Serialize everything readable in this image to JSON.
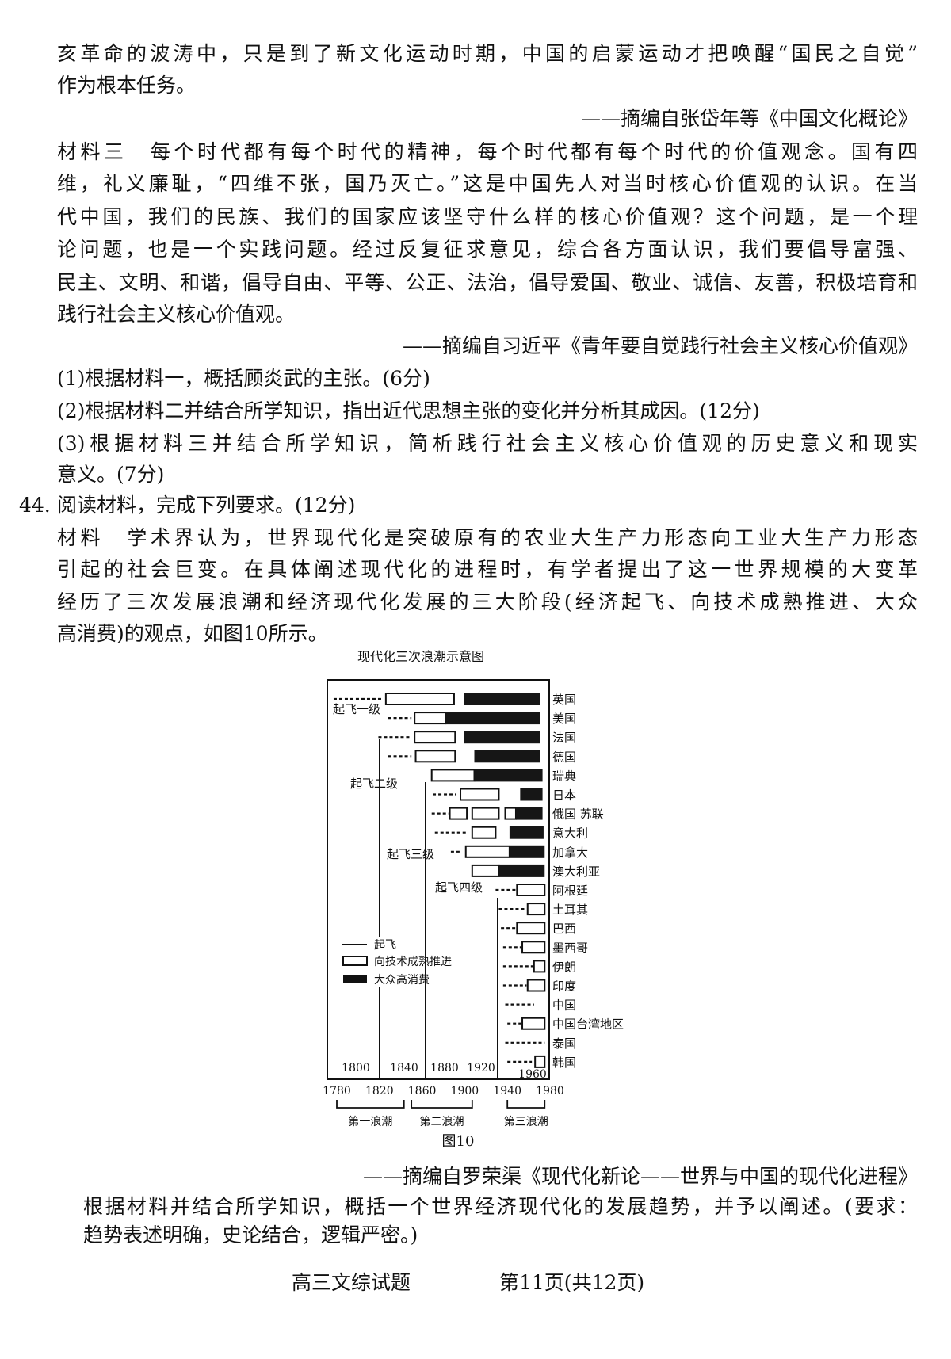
{
  "material2_tail": {
    "lines": [
      "亥革命的波涛中，只是到了新文化运动时期，中国的启蒙运动才把唤醒“国民之自觉”",
      "作为根本任务。"
    ],
    "source": "——摘编自张岱年等《中国文化概论》"
  },
  "material3": {
    "lines": [
      "材料三　每个时代都有每个时代的精神，每个时代都有每个时代的价值观念。国有四",
      "维，礼义廉耻，“四维不张，国乃灭亡。”这是中国先人对当时核心价值观的认识。在当",
      "代中国，我们的民族、我们的国家应该坚守什么样的核心价值观？这个问题，是一个理",
      "论问题，也是一个实践问题。经过反复征求意见，综合各方面认识，我们要倡导富强、",
      "民主、文明、和谐，倡导自由、平等、公正、法治，倡导爱国、敬业、诚信、友善，积极培育和",
      "践行社会主义核心价值观。"
    ],
    "source": "——摘编自习近平《青年要自觉践行社会主义核心价值观》"
  },
  "questions43": [
    "(1)根据材料一，概括顾炎武的主张。(6分)",
    "(2)根据材料二并结合所学知识，指出近代思想主张的变化并分析其成因。(12分)",
    "(3)根据材料三并结合所学知识，简析践行社会主义核心价值观的历史意义和现实",
    "意义。(7分)"
  ],
  "q44": {
    "number": "44.",
    "heading": "阅读材料，完成下列要求。(12分)",
    "material_lines": [
      "材料　学术界认为，世界现代化是突破原有的农业大生产力形态向工业大生产力形态",
      "引起的社会巨变。在具体阐述现代化的进程时，有学者提出了这一世界规模的大变革",
      "经历了三次发展浪潮和经济现代化发展的三大阶段(经济起飞、向技术成熟推进、大众",
      "高消费)的观点，如图10所示。"
    ],
    "figure_caption": "图10",
    "source": "——摘编自罗荣渠《现代化新论——世界与中国的现代化进程》",
    "task_lines": [
      "根据材料并结合所学知识，概括一个世界经济现代化的发展趋势，并予以阐述。(要求：",
      "趋势表述明确，史论结合，逻辑严密。)"
    ]
  },
  "chart_data": {
    "type": "timeline-bar",
    "title": "现代化三次浪潮示意图",
    "legend": {
      "takeoff": "起飞",
      "tech": "向技术成熟推进",
      "mass": "大众高消费"
    },
    "stage_labels": [
      "起飞一级",
      "起飞二级",
      "起飞三级",
      "起飞四级"
    ],
    "x_ticks": [
      "1780",
      "1820",
      "1860",
      "1900",
      "1940",
      "1980"
    ],
    "x_ticks_inner": [
      "1800",
      "1840",
      "1880",
      "1920",
      "1960"
    ],
    "xlim": [
      1771,
      1979
    ],
    "waves": [
      {
        "label": "第一浪潮",
        "range": [
          1780,
          1843
        ]
      },
      {
        "label": "第二浪潮",
        "range": [
          1850,
          1907
        ]
      },
      {
        "label": "第三浪潮",
        "range": [
          1940,
          1975
        ]
      }
    ],
    "rows": [
      {
        "name": "英国",
        "takeoff": [
          1777,
          1822
        ],
        "tech": [
          [
            1826,
            1890
          ]
        ],
        "mass": [
          1899,
          1971
        ]
      },
      {
        "name": "美国",
        "takeoff": [
          1828,
          1850
        ],
        "tech": [
          [
            1853,
            1882
          ]
        ],
        "mass": [
          1882,
          1971
        ]
      },
      {
        "name": "法国",
        "takeoff": [
          1819,
          1848
        ],
        "tech": [
          [
            1853,
            1891
          ]
        ],
        "mass": [
          1899,
          1971
        ]
      },
      {
        "name": "德国",
        "takeoff": [
          1828,
          1850
        ],
        "tech": [
          [
            1854,
            1891
          ]
        ],
        "mass": [
          1909,
          1971
        ]
      },
      {
        "name": "瑞典",
        "takeoff": null,
        "tech": [
          [
            1869,
            1909
          ]
        ],
        "mass": [
          1909,
          1973
        ]
      },
      {
        "name": "日本",
        "takeoff": [
          1870,
          1892
        ],
        "tech": [
          [
            1896,
            1932
          ]
        ],
        "mass": [
          1952,
          1973
        ]
      },
      {
        "name": "俄国 苏联",
        "takeoff": [
          1869,
          1885
        ],
        "tech": [
          [
            1886,
            1902
          ],
          [
            1907,
            1932
          ],
          [
            1938,
            1948
          ]
        ],
        "mass": [
          1948,
          1973
        ]
      },
      {
        "name": "意大利",
        "takeoff": [
          1872,
          1902
        ],
        "tech": [
          [
            1907,
            1929
          ]
        ],
        "mass": [
          1942,
          1974
        ]
      },
      {
        "name": "加拿大",
        "takeoff": [
          1887,
          1897
        ],
        "tech": [
          [
            1901,
            1942
          ]
        ],
        "mass": [
          1942,
          1975
        ]
      },
      {
        "name": "澳大利亚",
        "takeoff": null,
        "tech": [
          [
            1907,
            1932
          ]
        ],
        "mass": [
          1932,
          1975
        ]
      },
      {
        "name": "阿根廷",
        "takeoff": [
          1929,
          1948
        ],
        "tech": [
          [
            1949,
            1975
          ]
        ],
        "mass": null
      },
      {
        "name": "土耳其",
        "takeoff": [
          1932,
          1958
        ],
        "tech": [
          [
            1959,
            1975
          ]
        ],
        "mass": null
      },
      {
        "name": "巴西",
        "takeoff": [
          1934,
          1948
        ],
        "tech": [
          [
            1949,
            1975
          ]
        ],
        "mass": null
      },
      {
        "name": "墨西哥",
        "takeoff": [
          1936,
          1953
        ],
        "tech": [
          [
            1954,
            1975
          ]
        ],
        "mass": null
      },
      {
        "name": "伊朗",
        "takeoff": [
          1936,
          1964
        ],
        "tech": [
          [
            1965,
            1975
          ]
        ],
        "mass": null
      },
      {
        "name": "印度",
        "takeoff": [
          1936,
          1958
        ],
        "tech": [
          [
            1959,
            1975
          ]
        ],
        "mass": null
      },
      {
        "name": "中国",
        "takeoff": [
          1938,
          1965
        ],
        "tech": [],
        "mass": null
      },
      {
        "name": "中国台湾地区",
        "takeoff": [
          1940,
          1953
        ],
        "tech": [
          [
            1954,
            1975
          ]
        ],
        "mass": null
      },
      {
        "name": "泰国",
        "takeoff": [
          1938,
          1975
        ],
        "tech": [],
        "mass": null
      },
      {
        "name": "韩国",
        "takeoff": [
          1940,
          1963
        ],
        "tech": [
          [
            1966,
            1975
          ]
        ],
        "mass": null
      }
    ]
  },
  "footer": {
    "subject": "高三文综试题",
    "page": "第11页(共12页)"
  }
}
